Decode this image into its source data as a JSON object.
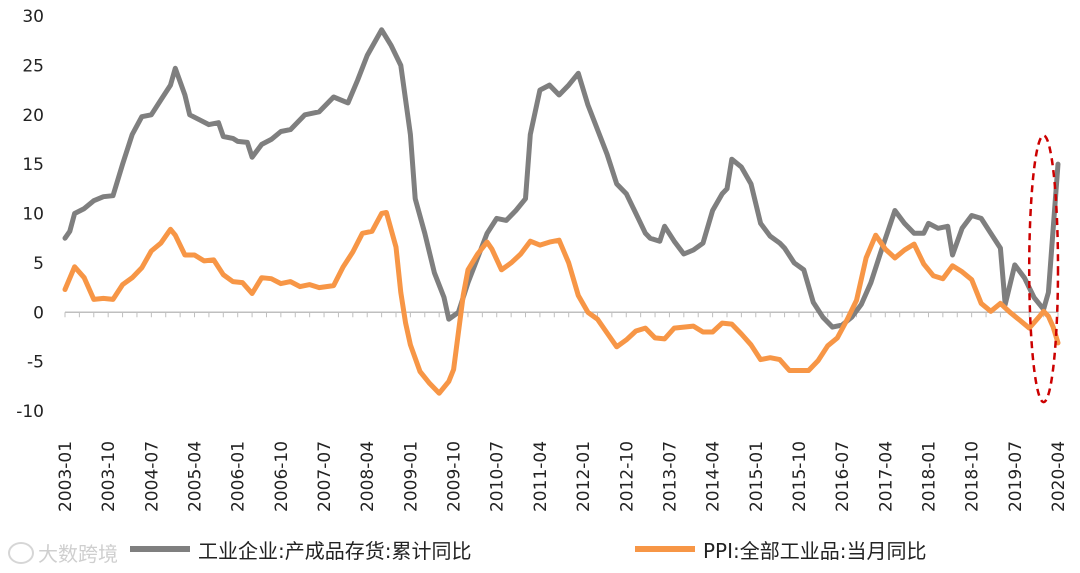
{
  "chart_data": {
    "type": "line",
    "title": "",
    "xlabel": "",
    "ylabel": "",
    "ylim": [
      -10,
      30
    ],
    "yticks": [
      -10,
      -5,
      0,
      5,
      10,
      15,
      20,
      25,
      30
    ],
    "x_range": [
      "2003-01",
      "2020-04"
    ],
    "xticks": [
      "2003-01",
      "2003-10",
      "2004-07",
      "2005-04",
      "2006-01",
      "2006-10",
      "2007-07",
      "2008-04",
      "2009-01",
      "2009-10",
      "2010-07",
      "2011-04",
      "2012-01",
      "2012-10",
      "2013-07",
      "2014-04",
      "2015-01",
      "2015-10",
      "2016-07",
      "2017-04",
      "2018-01",
      "2018-10",
      "2019-07",
      "2020-04"
    ],
    "grid": false,
    "legend_position": "bottom",
    "series": [
      {
        "name": "工业企业:产成品存货:累计同比",
        "color": "#7f7f7f",
        "points": [
          [
            "2003-01",
            7.5
          ],
          [
            "2003-02",
            8.2
          ],
          [
            "2003-03",
            10.0
          ],
          [
            "2003-05",
            10.5
          ],
          [
            "2003-07",
            11.3
          ],
          [
            "2003-09",
            11.7
          ],
          [
            "2003-11",
            11.8
          ],
          [
            "2004-01",
            15.0
          ],
          [
            "2004-03",
            18.0
          ],
          [
            "2004-05",
            19.8
          ],
          [
            "2004-07",
            20.0
          ],
          [
            "2004-09",
            21.5
          ],
          [
            "2004-11",
            23.0
          ],
          [
            "2004-12",
            24.7
          ],
          [
            "2005-02",
            22.0
          ],
          [
            "2005-03",
            20.0
          ],
          [
            "2005-05",
            19.5
          ],
          [
            "2005-07",
            19.0
          ],
          [
            "2005-09",
            19.2
          ],
          [
            "2005-10",
            17.8
          ],
          [
            "2005-12",
            17.6
          ],
          [
            "2006-01",
            17.3
          ],
          [
            "2006-03",
            17.2
          ],
          [
            "2006-04",
            15.7
          ],
          [
            "2006-06",
            17.0
          ],
          [
            "2006-08",
            17.5
          ],
          [
            "2006-10",
            18.3
          ],
          [
            "2006-12",
            18.5
          ],
          [
            "2007-03",
            20.0
          ],
          [
            "2007-06",
            20.3
          ],
          [
            "2007-09",
            21.8
          ],
          [
            "2007-12",
            21.2
          ],
          [
            "2008-02",
            23.5
          ],
          [
            "2008-04",
            26.0
          ],
          [
            "2008-07",
            28.6
          ],
          [
            "2008-09",
            27.0
          ],
          [
            "2008-11",
            25.0
          ],
          [
            "2009-01",
            18.0
          ],
          [
            "2009-02",
            11.5
          ],
          [
            "2009-04",
            8.0
          ],
          [
            "2009-06",
            4.0
          ],
          [
            "2009-08",
            1.5
          ],
          [
            "2009-09",
            -0.7
          ],
          [
            "2009-11",
            0.0
          ],
          [
            "2010-01",
            3.0
          ],
          [
            "2010-03",
            5.5
          ],
          [
            "2010-05",
            8.0
          ],
          [
            "2010-07",
            9.5
          ],
          [
            "2010-09",
            9.3
          ],
          [
            "2010-11",
            10.3
          ],
          [
            "2011-01",
            11.5
          ],
          [
            "2011-02",
            18.0
          ],
          [
            "2011-04",
            22.5
          ],
          [
            "2011-06",
            23.0
          ],
          [
            "2011-08",
            22.0
          ],
          [
            "2011-10",
            23.0
          ],
          [
            "2011-12",
            24.2
          ],
          [
            "2012-02",
            21.0
          ],
          [
            "2012-04",
            18.5
          ],
          [
            "2012-06",
            16.0
          ],
          [
            "2012-08",
            13.0
          ],
          [
            "2012-10",
            12.0
          ],
          [
            "2012-12",
            10.0
          ],
          [
            "2013-02",
            8.0
          ],
          [
            "2013-03",
            7.5
          ],
          [
            "2013-05",
            7.2
          ],
          [
            "2013-06",
            8.7
          ],
          [
            "2013-08",
            7.2
          ],
          [
            "2013-10",
            5.9
          ],
          [
            "2013-12",
            6.3
          ],
          [
            "2014-02",
            7.0
          ],
          [
            "2014-04",
            10.3
          ],
          [
            "2014-06",
            12.0
          ],
          [
            "2014-07",
            12.5
          ],
          [
            "2014-08",
            15.5
          ],
          [
            "2014-10",
            14.7
          ],
          [
            "2014-12",
            13.0
          ],
          [
            "2015-02",
            9.0
          ],
          [
            "2015-04",
            7.7
          ],
          [
            "2015-06",
            7.0
          ],
          [
            "2015-07",
            6.5
          ],
          [
            "2015-09",
            5.0
          ],
          [
            "2015-11",
            4.3
          ],
          [
            "2016-01",
            1.0
          ],
          [
            "2016-03",
            -0.5
          ],
          [
            "2016-05",
            -1.5
          ],
          [
            "2016-07",
            -1.3
          ],
          [
            "2016-09",
            -0.5
          ],
          [
            "2016-11",
            0.8
          ],
          [
            "2017-01",
            3.0
          ],
          [
            "2017-03",
            6.0
          ],
          [
            "2017-06",
            10.3
          ],
          [
            "2017-08",
            9.0
          ],
          [
            "2017-10",
            8.0
          ],
          [
            "2017-12",
            8.0
          ],
          [
            "2018-01",
            9.0
          ],
          [
            "2018-03",
            8.5
          ],
          [
            "2018-05",
            8.7
          ],
          [
            "2018-06",
            5.8
          ],
          [
            "2018-08",
            8.5
          ],
          [
            "2018-10",
            9.8
          ],
          [
            "2018-12",
            9.5
          ],
          [
            "2019-02",
            8.0
          ],
          [
            "2019-04",
            6.5
          ],
          [
            "2019-05",
            0.8
          ],
          [
            "2019-07",
            4.8
          ],
          [
            "2019-09",
            3.5
          ],
          [
            "2019-11",
            1.5
          ],
          [
            "2020-01",
            0.3
          ],
          [
            "2020-02",
            2.0
          ],
          [
            "2020-03",
            8.5
          ],
          [
            "2020-04",
            15.0
          ]
        ]
      },
      {
        "name": "PPI:全部工业品:当月同比",
        "color": "#f79646",
        "points": [
          [
            "2003-01",
            2.3
          ],
          [
            "2003-03",
            4.6
          ],
          [
            "2003-05",
            3.5
          ],
          [
            "2003-07",
            1.3
          ],
          [
            "2003-09",
            1.4
          ],
          [
            "2003-11",
            1.3
          ],
          [
            "2004-01",
            2.8
          ],
          [
            "2004-03",
            3.5
          ],
          [
            "2004-05",
            4.5
          ],
          [
            "2004-07",
            6.2
          ],
          [
            "2004-09",
            7.0
          ],
          [
            "2004-11",
            8.4
          ],
          [
            "2004-12",
            7.8
          ],
          [
            "2005-02",
            5.8
          ],
          [
            "2005-04",
            5.8
          ],
          [
            "2005-06",
            5.2
          ],
          [
            "2005-08",
            5.3
          ],
          [
            "2005-10",
            3.8
          ],
          [
            "2005-12",
            3.1
          ],
          [
            "2006-02",
            3.0
          ],
          [
            "2006-04",
            1.9
          ],
          [
            "2006-06",
            3.5
          ],
          [
            "2006-08",
            3.4
          ],
          [
            "2006-10",
            2.9
          ],
          [
            "2006-12",
            3.1
          ],
          [
            "2007-02",
            2.6
          ],
          [
            "2007-04",
            2.8
          ],
          [
            "2007-06",
            2.5
          ],
          [
            "2007-09",
            2.7
          ],
          [
            "2007-11",
            4.6
          ],
          [
            "2008-01",
            6.1
          ],
          [
            "2008-03",
            8.0
          ],
          [
            "2008-05",
            8.2
          ],
          [
            "2008-07",
            10.0
          ],
          [
            "2008-08",
            10.1
          ],
          [
            "2008-10",
            6.6
          ],
          [
            "2008-11",
            2.0
          ],
          [
            "2008-12",
            -1.1
          ],
          [
            "2009-01",
            -3.3
          ],
          [
            "2009-03",
            -6.0
          ],
          [
            "2009-05",
            -7.2
          ],
          [
            "2009-07",
            -8.2
          ],
          [
            "2009-09",
            -7.0
          ],
          [
            "2009-10",
            -5.8
          ],
          [
            "2009-12",
            1.7
          ],
          [
            "2010-01",
            4.3
          ],
          [
            "2010-03",
            5.9
          ],
          [
            "2010-05",
            7.1
          ],
          [
            "2010-06",
            6.4
          ],
          [
            "2010-08",
            4.3
          ],
          [
            "2010-10",
            5.0
          ],
          [
            "2010-12",
            5.9
          ],
          [
            "2011-02",
            7.2
          ],
          [
            "2011-04",
            6.8
          ],
          [
            "2011-06",
            7.1
          ],
          [
            "2011-08",
            7.3
          ],
          [
            "2011-10",
            5.0
          ],
          [
            "2011-12",
            1.7
          ],
          [
            "2012-02",
            0.0
          ],
          [
            "2012-04",
            -0.7
          ],
          [
            "2012-06",
            -2.1
          ],
          [
            "2012-08",
            -3.5
          ],
          [
            "2012-10",
            -2.8
          ],
          [
            "2012-12",
            -1.9
          ],
          [
            "2013-02",
            -1.6
          ],
          [
            "2013-04",
            -2.6
          ],
          [
            "2013-06",
            -2.7
          ],
          [
            "2013-08",
            -1.6
          ],
          [
            "2013-10",
            -1.5
          ],
          [
            "2013-12",
            -1.4
          ],
          [
            "2014-02",
            -2.0
          ],
          [
            "2014-04",
            -2.0
          ],
          [
            "2014-06",
            -1.1
          ],
          [
            "2014-08",
            -1.2
          ],
          [
            "2014-10",
            -2.2
          ],
          [
            "2014-12",
            -3.3
          ],
          [
            "2015-02",
            -4.8
          ],
          [
            "2015-04",
            -4.6
          ],
          [
            "2015-06",
            -4.8
          ],
          [
            "2015-08",
            -5.9
          ],
          [
            "2015-10",
            -5.9
          ],
          [
            "2015-12",
            -5.9
          ],
          [
            "2016-02",
            -4.9
          ],
          [
            "2016-04",
            -3.4
          ],
          [
            "2016-06",
            -2.6
          ],
          [
            "2016-08",
            -0.8
          ],
          [
            "2016-10",
            1.2
          ],
          [
            "2016-12",
            5.5
          ],
          [
            "2017-02",
            7.8
          ],
          [
            "2017-04",
            6.4
          ],
          [
            "2017-06",
            5.5
          ],
          [
            "2017-08",
            6.3
          ],
          [
            "2017-10",
            6.9
          ],
          [
            "2017-12",
            4.9
          ],
          [
            "2018-02",
            3.7
          ],
          [
            "2018-04",
            3.4
          ],
          [
            "2018-06",
            4.7
          ],
          [
            "2018-08",
            4.1
          ],
          [
            "2018-10",
            3.3
          ],
          [
            "2018-12",
            0.9
          ],
          [
            "2019-02",
            0.1
          ],
          [
            "2019-04",
            0.9
          ],
          [
            "2019-06",
            0.0
          ],
          [
            "2019-08",
            -0.8
          ],
          [
            "2019-10",
            -1.6
          ],
          [
            "2019-12",
            -0.5
          ],
          [
            "2020-01",
            0.1
          ],
          [
            "2020-02",
            -0.4
          ],
          [
            "2020-03",
            -1.5
          ],
          [
            "2020-04",
            -3.1
          ]
        ]
      }
    ],
    "annotation": {
      "type": "dashed-ellipse",
      "color": "#cc0000",
      "x_center": "2020-01",
      "y_center": 4.4,
      "x_halfwidth_months": 3,
      "y_halfwidth": 13.5
    }
  },
  "legend": {
    "item1_label": "工业企业:产成品存货:累计同比",
    "item2_label": "PPI:全部工业品:当月同比"
  },
  "watermark": {
    "text": "大数跨境"
  }
}
